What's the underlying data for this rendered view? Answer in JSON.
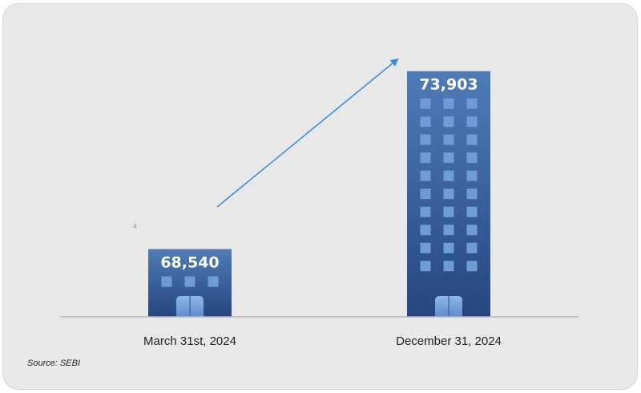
{
  "chart_data": {
    "type": "bar",
    "title": "",
    "xlabel": "",
    "ylabel": "",
    "categories": [
      "March 31st, 2024",
      "December 31, 2024"
    ],
    "values": [
      68540,
      73903
    ],
    "value_labels": [
      "68,540",
      "73,903"
    ],
    "ylim": [
      66500,
      74500
    ],
    "grid": false,
    "legend": "none",
    "bar_style": "building",
    "trend_arrow": "increase"
  },
  "source": "Source: SEBI",
  "stray_mark": "4",
  "colors": {
    "card_bg": "#e8e8e8",
    "building_top": "#4f7cb7",
    "building_bottom": "#26467e",
    "window": "#6e9cd6",
    "arrow": "#3b8fe0",
    "baseline": "#b3b3b3",
    "label_text": "#222222",
    "value_text": "#ffffff"
  }
}
